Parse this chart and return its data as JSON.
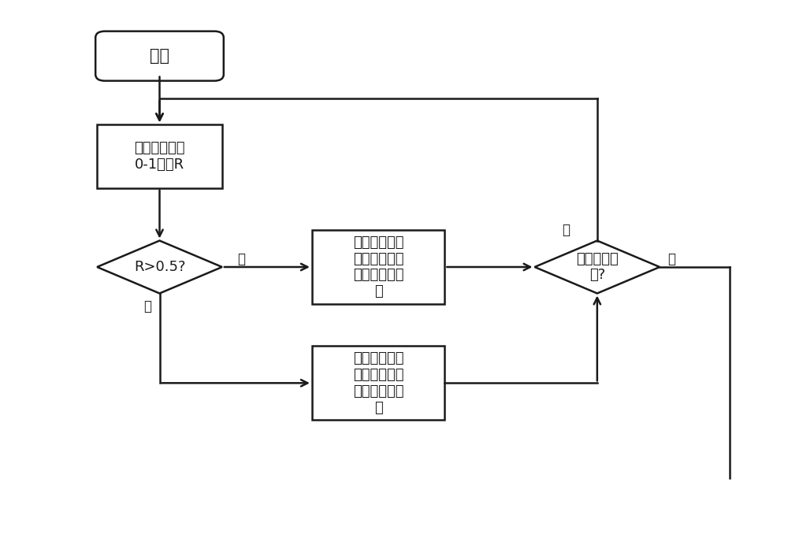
{
  "bg_color": "#ffffff",
  "line_color": "#1a1a1a",
  "text_color": "#1a1a1a",
  "font_size_title": 15,
  "font_size_box": 13,
  "font_size_label": 12,
  "start_text": "开始",
  "box1_text": "随机生成一个\n0-1的数R",
  "diamond1_text": "R>0.5?",
  "box2_text": "注入较高频率\n信号以及生成\n对应的解调信\n号",
  "box3_text": "注入较低频率\n信号以及生成\n对应的解调信\n号",
  "diamond2_text": "完成一个周\n期?",
  "label_yes": "是",
  "label_no": "否",
  "figsize": [
    10.0,
    6.78
  ],
  "dpi": 100
}
